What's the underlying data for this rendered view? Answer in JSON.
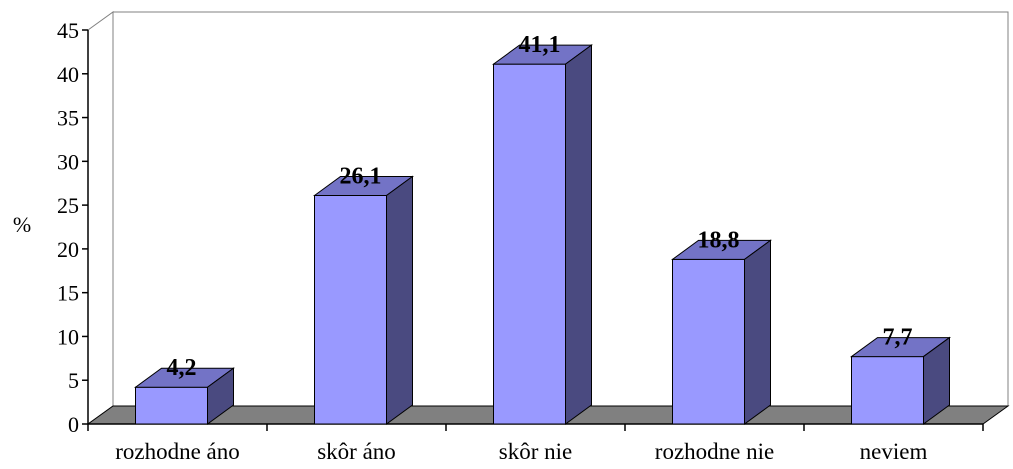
{
  "chart_data": {
    "type": "bar",
    "style": "3d-column",
    "categories": [
      "rozhodne áno",
      "skôr áno",
      "skôr nie",
      "rozhodne nie",
      "neviem"
    ],
    "values": [
      4.2,
      26.1,
      41.1,
      18.8,
      7.7
    ],
    "data_labels": [
      "4,2",
      "26,1",
      "41,1",
      "18,8",
      "7,7"
    ],
    "title": "",
    "xlabel": "",
    "ylabel": "%",
    "ylim": [
      0,
      45
    ],
    "yticks": [
      0,
      5,
      10,
      15,
      20,
      25,
      30,
      35,
      40,
      45
    ],
    "grid": false,
    "legend": "none",
    "colors": {
      "bar_front": "#9999ff",
      "bar_side": "#4a4a80",
      "bar_top": "#7373c6",
      "floor": "#808080",
      "wall": "#ffffff",
      "axis": "#000000"
    }
  }
}
